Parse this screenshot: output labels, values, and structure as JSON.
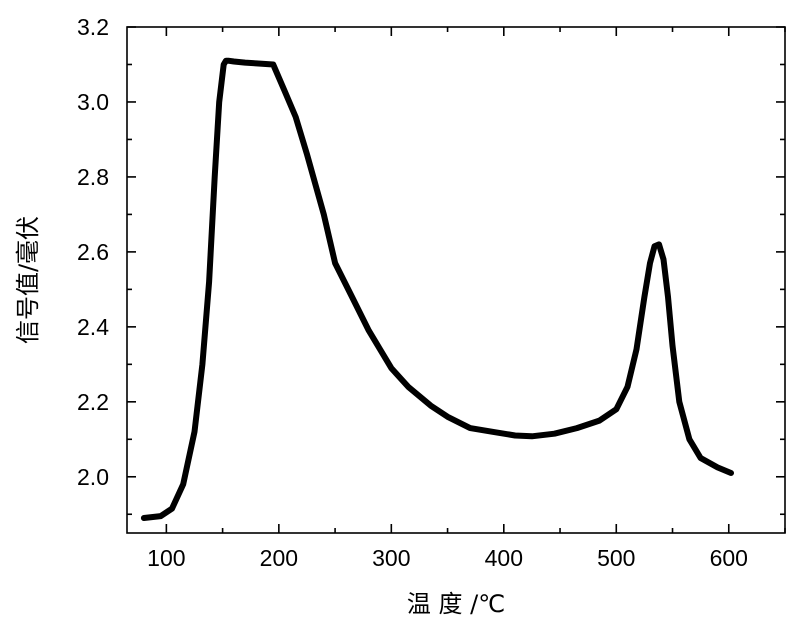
{
  "chart_data": {
    "type": "line",
    "xlabel": "温 度 /℃",
    "ylabel": "信号值/毫伏",
    "xlim": [
      65,
      650
    ],
    "ylim": [
      1.85,
      3.2
    ],
    "x_ticks": [
      100,
      200,
      300,
      400,
      500,
      600
    ],
    "x_tick_labels": [
      "100",
      "200",
      "300",
      "400",
      "500",
      "600"
    ],
    "y_ticks": [
      2.0,
      2.2,
      2.4,
      2.6,
      2.8,
      3.0,
      3.2
    ],
    "y_tick_labels": [
      "2.0",
      "2.2",
      "2.4",
      "2.6",
      "2.8",
      "3.0",
      "3.2"
    ],
    "grid": false,
    "line_color": "#000000",
    "series": [
      {
        "x": [
          80,
          95,
          105,
          115,
          125,
          132,
          138,
          143,
          147,
          151,
          153,
          155,
          160,
          170,
          180,
          195,
          205,
          215,
          225,
          240,
          250,
          265,
          280,
          300,
          315,
          335,
          350,
          370,
          390,
          410,
          425,
          445,
          465,
          485,
          500,
          510,
          518,
          525,
          530,
          534,
          538,
          542,
          546,
          550,
          556,
          565,
          575,
          590,
          602
        ],
        "y": [
          1.89,
          1.895,
          1.915,
          1.98,
          2.12,
          2.3,
          2.52,
          2.8,
          3.0,
          3.1,
          3.11,
          3.11,
          3.108,
          3.105,
          3.103,
          3.1,
          3.03,
          2.96,
          2.86,
          2.7,
          2.57,
          2.48,
          2.39,
          2.29,
          2.24,
          2.19,
          2.16,
          2.13,
          2.12,
          2.11,
          2.108,
          2.115,
          2.13,
          2.15,
          2.18,
          2.24,
          2.34,
          2.48,
          2.57,
          2.615,
          2.62,
          2.58,
          2.48,
          2.35,
          2.2,
          2.1,
          2.05,
          2.025,
          2.01
        ]
      }
    ]
  }
}
